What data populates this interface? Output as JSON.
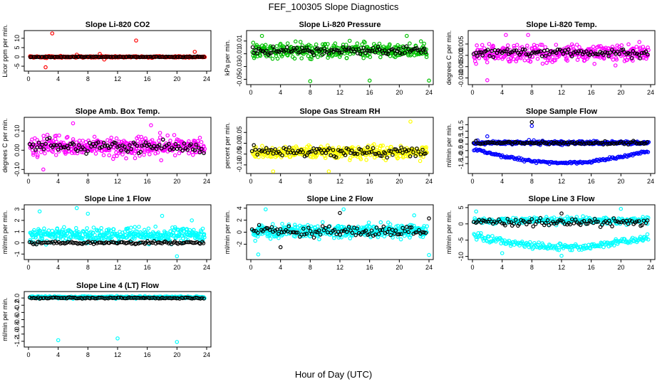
{
  "figure": {
    "title": "FEF_100305  Slope Diagnostics",
    "xlabel": "Hour of Day (UTC)"
  },
  "chart_data": [
    {
      "type": "scatter",
      "title": "Slope Li-820 CO2",
      "ylabel": "Licor ppm per min.",
      "xlim": [
        0,
        24
      ],
      "ylim": [
        -6.5,
        13
      ],
      "xticks": [
        0,
        4,
        8,
        12,
        16,
        20,
        24
      ],
      "yticks": [
        -5,
        0,
        5,
        10
      ],
      "ytick_labels": [
        "-5",
        "0",
        "5",
        "10"
      ],
      "series": [
        {
          "color": "#ff0000",
          "center": 0,
          "spread": 0.4,
          "count": 340,
          "points": [
            [
              3.2,
              12.6
            ],
            [
              14.5,
              8.8
            ],
            [
              22.4,
              2.7
            ],
            [
              2.3,
              -5.6
            ],
            [
              9.6,
              1.6
            ],
            [
              10.2,
              -1.4
            ],
            [
              6.5,
              1.2
            ]
          ]
        },
        {
          "color": "#000000",
          "center": 0,
          "spread": 0.15,
          "count": 110,
          "points": []
        }
      ]
    },
    {
      "type": "scatter",
      "title": "Slope Li-820 Pressure",
      "ylabel": "kPa per min.",
      "xlim": [
        0,
        24
      ],
      "ylim": [
        -0.055,
        0.023
      ],
      "xticks": [
        0,
        4,
        8,
        12,
        16,
        20,
        24
      ],
      "yticks": [
        -0.05,
        -0.03,
        -0.01,
        0.01
      ],
      "ytick_labels": [
        "-0.05",
        "-0.03",
        "-0.01",
        "0.01"
      ],
      "series": [
        {
          "color": "#00c000",
          "center": -0.005,
          "spread": 0.012,
          "count": 340,
          "points": [
            [
              8.0,
              -0.053
            ],
            [
              16.0,
              -0.052
            ],
            [
              24.0,
              -0.052
            ],
            [
              1.5,
              0.018
            ],
            [
              21.0,
              0.018
            ]
          ]
        },
        {
          "color": "#000000",
          "center": -0.005,
          "spread": 0.006,
          "count": 110,
          "points": []
        }
      ]
    },
    {
      "type": "scatter",
      "title": "Slope Li-820 Temp.",
      "ylabel": "degrees C per min.",
      "xlim": [
        0,
        24
      ],
      "ylim": [
        -0.012,
        0.01
      ],
      "xticks": [
        0,
        4,
        8,
        12,
        16,
        20,
        24
      ],
      "yticks": [
        -0.01,
        -0.005,
        0,
        0.005
      ],
      "ytick_labels": [
        "-0.010",
        "-0.005",
        "0.000",
        "0.005"
      ],
      "series": [
        {
          "color": "#ff00ff",
          "center": 0.001,
          "spread": 0.004,
          "count": 360,
          "points": [
            [
              2.0,
              -0.011
            ],
            [
              7.5,
              0.009
            ],
            [
              4.5,
              0.009
            ]
          ]
        },
        {
          "color": "#000000",
          "center": 0.001,
          "spread": 0.002,
          "count": 100,
          "points": []
        }
      ]
    },
    {
      "type": "scatter",
      "title": "Slope Amb. Box Temp.",
      "ylabel": "degrees C per min.",
      "xlim": [
        0,
        24
      ],
      "ylim": [
        -0.11,
        0.16
      ],
      "xticks": [
        0,
        4,
        8,
        12,
        16,
        20,
        24
      ],
      "yticks": [
        -0.1,
        0,
        0.1
      ],
      "ytick_labels": [
        "-0.10",
        "0.00",
        "0.10"
      ],
      "series": [
        {
          "color": "#ff00ff",
          "center": 0.02,
          "spread": 0.05,
          "count": 380,
          "points": [
            [
              2.0,
              -0.1
            ],
            [
              6.0,
              0.14
            ],
            [
              16.5,
              0.13
            ]
          ]
        },
        {
          "color": "#000000",
          "center": 0.02,
          "spread": 0.03,
          "count": 100,
          "points": []
        }
      ]
    },
    {
      "type": "scatter",
      "title": "Slope Gas Stream RH",
      "ylabel": "percent per min.",
      "xlim": [
        0,
        24
      ],
      "ylim": [
        -0.13,
        0.11
      ],
      "xticks": [
        0,
        4,
        8,
        12,
        16,
        20,
        24
      ],
      "yticks": [
        -0.1,
        -0.05,
        0,
        0.05
      ],
      "ytick_labels": [
        "-0.10",
        "-0.05",
        "0.00",
        "0.05"
      ],
      "series": [
        {
          "color": "#ffff00",
          "center": -0.04,
          "spread": 0.028,
          "count": 380,
          "points": [
            [
              3.0,
              -0.13
            ],
            [
              21.5,
              0.1
            ],
            [
              10.5,
              -0.13
            ]
          ]
        },
        {
          "color": "#000000",
          "center": -0.04,
          "spread": 0.022,
          "count": 100,
          "points": []
        }
      ]
    },
    {
      "type": "scatter",
      "title": "Slope Sample Flow",
      "ylabel": "ml/min per min.",
      "xlim": [
        0,
        24
      ],
      "ylim": [
        -2.1,
        1.9
      ],
      "xticks": [
        0,
        4,
        8,
        12,
        16,
        20,
        24
      ],
      "yticks": [
        -1.5,
        -1,
        -0.5,
        0,
        0.5,
        1,
        1.5
      ],
      "ytick_labels": [
        "-1.5",
        "-1.0",
        "-0.5",
        "0.0",
        "0.5",
        "1.0",
        "1.5"
      ],
      "series": [
        {
          "color": "#0000ff",
          "center": 0.1,
          "spread": 0.14,
          "count": 300,
          "band": {
            "from": -0.4,
            "to": -1.5,
            "spread": 0.1,
            "count": 160
          },
          "points": [
            [
              8.0,
              1.4
            ],
            [
              2.0,
              0.6
            ]
          ]
        },
        {
          "color": "#000000",
          "center": 0.1,
          "spread": 0.12,
          "count": 100,
          "points": [
            [
              8.0,
              1.7
            ]
          ]
        }
      ]
    },
    {
      "type": "scatter",
      "title": "Slope Line 1 Flow",
      "ylabel": "ml/min per min.",
      "xlim": [
        0,
        24
      ],
      "ylim": [
        -1.3,
        3.2
      ],
      "xticks": [
        0,
        4,
        8,
        12,
        16,
        20,
        24
      ],
      "yticks": [
        -1,
        0,
        1,
        2,
        3
      ],
      "ytick_labels": [
        "-1",
        "0",
        "1",
        "2",
        "3"
      ],
      "series": [
        {
          "color": "#00ffff",
          "center": 0.7,
          "spread": 0.65,
          "count": 400,
          "points": [
            [
              6.5,
              3.1
            ],
            [
              1.5,
              2.8
            ],
            [
              8.0,
              2.6
            ],
            [
              18.0,
              2.4
            ],
            [
              22.0,
              2.0
            ],
            [
              20.0,
              -1.2
            ]
          ]
        },
        {
          "color": "#000000",
          "center": 0.0,
          "spread": 0.12,
          "count": 110,
          "points": []
        }
      ]
    },
    {
      "type": "scatter",
      "title": "Slope Line 2 Flow",
      "ylabel": "ml/min per min.",
      "xlim": [
        0,
        24
      ],
      "ylim": [
        -4.2,
        4.2
      ],
      "xticks": [
        0,
        4,
        8,
        12,
        16,
        20,
        24
      ],
      "yticks": [
        -2,
        0,
        2,
        4
      ],
      "ytick_labels": [
        "-2",
        "0",
        "2",
        "4"
      ],
      "series": [
        {
          "color": "#00ffff",
          "center": 0.2,
          "spread": 1.1,
          "count": 400,
          "points": [
            [
              2.0,
              3.8
            ],
            [
              12.5,
              3.8
            ],
            [
              24.0,
              -3.8
            ],
            [
              1.0,
              -3.7
            ],
            [
              22.0,
              2.8
            ]
          ]
        },
        {
          "color": "#000000",
          "center": 0.2,
          "spread": 0.9,
          "count": 100,
          "points": [
            [
              12.0,
              3.2
            ],
            [
              24.0,
              2.3
            ],
            [
              4.0,
              -2.5
            ]
          ]
        }
      ]
    },
    {
      "type": "scatter",
      "title": "Slope Line 3 Flow",
      "ylabel": "ml/min per min.",
      "xlim": [
        0,
        24
      ],
      "ylim": [
        -10.3,
        5.2
      ],
      "xticks": [
        0,
        4,
        8,
        12,
        16,
        20,
        24
      ],
      "yticks": [
        -10,
        -5,
        0,
        5
      ],
      "ytick_labels": [
        "-10",
        "-5",
        "0",
        "5"
      ],
      "series": [
        {
          "color": "#00ffff",
          "center": 1.0,
          "spread": 1.1,
          "count": 260,
          "band": {
            "from": -3.5,
            "to": -7.5,
            "spread": 1.1,
            "count": 200
          },
          "points": [
            [
              12.0,
              -9.8
            ],
            [
              4.0,
              -9.0
            ],
            [
              20.0,
              4.6
            ],
            [
              0.5,
              3.8
            ]
          ]
        },
        {
          "color": "#000000",
          "center": 0.5,
          "spread": 1.2,
          "count": 100,
          "points": [
            [
              12.0,
              3.2
            ]
          ]
        }
      ]
    },
    {
      "type": "scatter",
      "title": "Slope Line 4 (LT) Flow",
      "ylabel": "ml/min per min.",
      "xlim": [
        0,
        24
      ],
      "ylim": [
        -1.3,
        0.12
      ],
      "xticks": [
        0,
        4,
        8,
        12,
        16,
        20,
        24
      ],
      "yticks": [
        -1.2,
        -1,
        -0.8,
        -0.6,
        -0.4,
        -0.2,
        0
      ],
      "ytick_labels": [
        "-1.2",
        "-1.0",
        "-0.8",
        "-0.6",
        "-0.4",
        "-0.2",
        "0.0"
      ],
      "series": [
        {
          "color": "#00ffff",
          "center": 0.02,
          "spread": 0.03,
          "count": 380,
          "points": [
            [
              4.0,
              -1.17
            ],
            [
              12.0,
              -1.12
            ],
            [
              20.0,
              -1.22
            ]
          ]
        },
        {
          "color": "#000000",
          "center": 0.0,
          "spread": 0.02,
          "count": 110,
          "points": []
        }
      ]
    }
  ]
}
